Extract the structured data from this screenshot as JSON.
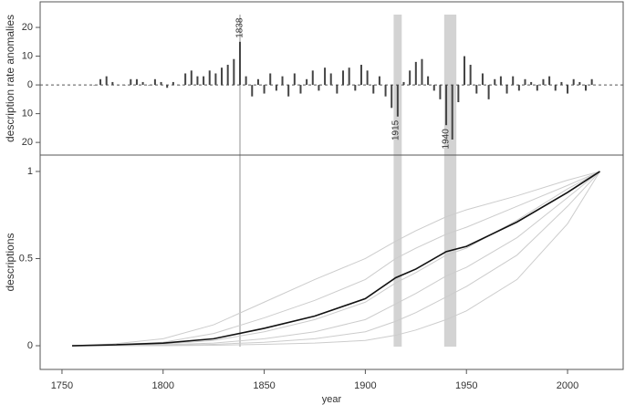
{
  "chart_data": [
    {
      "type": "bar",
      "ylabel": "description rate anomalies",
      "color": "#444444",
      "x": [
        1766,
        1769,
        1772,
        1775,
        1778,
        1781,
        1784,
        1787,
        1790,
        1793,
        1796,
        1799,
        1802,
        1805,
        1808,
        1811,
        1814,
        1817,
        1820,
        1823,
        1826,
        1829,
        1832,
        1835,
        1838,
        1841,
        1844,
        1847,
        1850,
        1853,
        1856,
        1859,
        1862,
        1865,
        1868,
        1871,
        1874,
        1877,
        1880,
        1883,
        1886,
        1889,
        1892,
        1895,
        1898,
        1901,
        1904,
        1907,
        1910,
        1913,
        1916,
        1919,
        1922,
        1925,
        1928,
        1931,
        1934,
        1937,
        1940,
        1943,
        1946,
        1949,
        1952,
        1955,
        1958,
        1961,
        1964,
        1967,
        1970,
        1973,
        1976,
        1979,
        1982,
        1985,
        1988,
        1991,
        1994,
        1997,
        2000,
        2003,
        2006,
        2009,
        2012
      ],
      "values": [
        0,
        2,
        3,
        1,
        0,
        0,
        2,
        2,
        1,
        0,
        2,
        1,
        -1,
        1,
        0,
        4,
        5,
        3,
        3,
        5,
        4,
        6,
        7,
        9,
        15,
        3,
        -4,
        2,
        -3,
        4,
        -2,
        3,
        -4,
        4,
        -3,
        2,
        5,
        -2,
        6,
        4,
        -3,
        5,
        6,
        -2,
        7,
        5,
        -3,
        3,
        -4,
        -8,
        -11,
        1,
        5,
        8,
        9,
        3,
        -2,
        -5,
        -14,
        -19,
        -6,
        10,
        7,
        -3,
        4,
        -5,
        2,
        3,
        -3,
        3,
        -2,
        2,
        1,
        -2,
        2,
        3,
        -2,
        1,
        -3,
        2,
        1,
        -2,
        2
      ],
      "xlim": [
        1739.2,
        2027.5
      ],
      "ylim": [
        -24.4,
        28.9
      ],
      "yticks": [
        {
          "value": -20,
          "label": "20"
        },
        {
          "value": -10,
          "label": "10"
        },
        0,
        10,
        20
      ],
      "hline": 0,
      "annotations": [
        {
          "x": 1838,
          "label": "1838"
        },
        {
          "x": 1915,
          "label": "1915"
        },
        {
          "x": 1940,
          "label": "1940"
        }
      ],
      "bands": [
        [
          1914,
          1918
        ],
        [
          1939,
          1945
        ]
      ]
    },
    {
      "type": "line",
      "xlabel": "year",
      "ylabel": "descriptions",
      "x": [
        1755,
        1775,
        1800,
        1825,
        1850,
        1875,
        1900,
        1915,
        1925,
        1940,
        1950,
        1975,
        2000,
        2016
      ],
      "series": [
        {
          "color": "#cccccc",
          "values": [
            0,
            0.01,
            0.04,
            0.12,
            0.25,
            0.38,
            0.5,
            0.6,
            0.66,
            0.74,
            0.78,
            0.86,
            0.95,
            1
          ]
        },
        {
          "color": "#cccccc",
          "values": [
            0,
            0.005,
            0.02,
            0.07,
            0.16,
            0.26,
            0.38,
            0.5,
            0.56,
            0.64,
            0.68,
            0.8,
            0.92,
            1
          ]
        },
        {
          "color": "#cccccc",
          "values": [
            0,
            0.003,
            0.01,
            0.03,
            0.08,
            0.15,
            0.25,
            0.36,
            0.42,
            0.52,
            0.56,
            0.72,
            0.9,
            1
          ]
        },
        {
          "color": "#cccccc",
          "values": [
            0,
            0.002,
            0.005,
            0.015,
            0.04,
            0.08,
            0.15,
            0.24,
            0.3,
            0.4,
            0.45,
            0.62,
            0.85,
            1
          ]
        },
        {
          "color": "#cccccc",
          "values": [
            0,
            0,
            0.002,
            0.008,
            0.02,
            0.04,
            0.08,
            0.14,
            0.19,
            0.28,
            0.34,
            0.52,
            0.8,
            1
          ]
        },
        {
          "color": "#cccccc",
          "values": [
            0,
            0,
            0,
            0.003,
            0.008,
            0.015,
            0.03,
            0.06,
            0.09,
            0.15,
            0.2,
            0.38,
            0.7,
            1
          ]
        },
        {
          "color": "#111111",
          "values": [
            0,
            0.005,
            0.015,
            0.04,
            0.1,
            0.17,
            0.27,
            0.39,
            0.44,
            0.54,
            0.57,
            0.71,
            0.88,
            1
          ]
        }
      ],
      "xlim": [
        1739.2,
        2027.5
      ],
      "ylim": [
        -0.136,
        1.094
      ],
      "xticks": [
        1750,
        1800,
        1850,
        1900,
        1950,
        2000
      ],
      "yticks": [
        0,
        0.5,
        1
      ]
    }
  ]
}
